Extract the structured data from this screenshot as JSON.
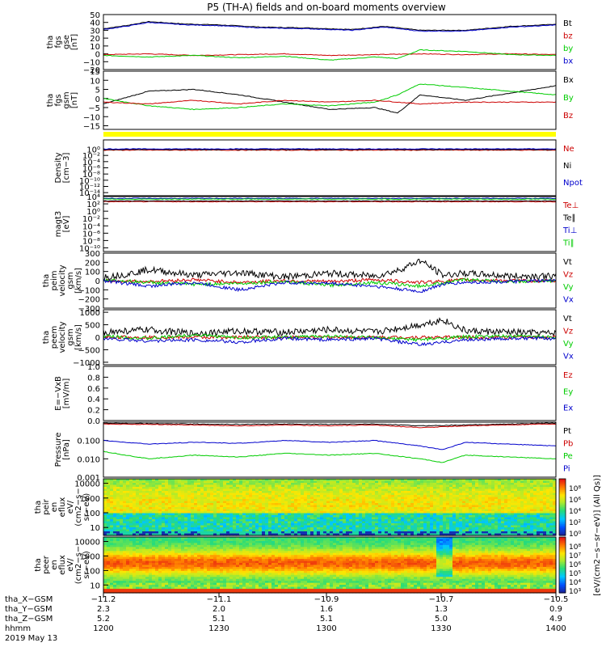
{
  "title": "P5 (TH-A) fields and on-board moments overview",
  "chart_data": [
    {
      "type": "line",
      "panel": "fgs_gse",
      "ylabel": [
        "tha",
        "fgs",
        "gse",
        "[nT]"
      ],
      "ylim": [
        -20,
        50
      ],
      "yticks": [
        "50",
        "40",
        "30",
        "20",
        "10",
        "0",
        "−10",
        "−20"
      ],
      "tickvals": [
        50,
        40,
        30,
        20,
        10,
        0,
        -10,
        -20
      ],
      "series": [
        {
          "name": "Bt",
          "color": "#000000",
          "x": [
            0,
            5,
            10,
            18,
            25,
            35,
            45,
            55,
            62,
            70,
            80,
            90,
            98,
            100
          ],
          "y": [
            32,
            36,
            41,
            38,
            37,
            34,
            33,
            31,
            35,
            30,
            30,
            35,
            37,
            38
          ]
        },
        {
          "name": "bz",
          "color": "#cc0000",
          "x": [
            0,
            10,
            20,
            30,
            40,
            50,
            60,
            70,
            80,
            90,
            100
          ],
          "y": [
            -1,
            0,
            -2,
            -1,
            0,
            -2,
            -1,
            0,
            -1,
            0,
            -1
          ]
        },
        {
          "name": "by",
          "color": "#00cc00",
          "x": [
            0,
            10,
            20,
            30,
            40,
            50,
            60,
            65,
            70,
            80,
            90,
            100
          ],
          "y": [
            -2,
            -4,
            -2,
            -5,
            -3,
            -8,
            -4,
            -6,
            5,
            3,
            -1,
            -2
          ]
        },
        {
          "name": "bx",
          "color": "#0000cc",
          "x": [
            0,
            5,
            10,
            18,
            25,
            35,
            45,
            55,
            62,
            70,
            80,
            90,
            98,
            100
          ],
          "y": [
            31,
            35,
            40,
            37,
            36,
            33,
            32,
            30,
            34,
            29,
            29,
            34,
            36,
            37
          ]
        }
      ]
    },
    {
      "type": "line",
      "panel": "fgs_gsm",
      "ylabel": [
        "tha",
        "fgs",
        "gsm",
        "[nT]"
      ],
      "ylim": [
        -17,
        15
      ],
      "yticks": [
        "15",
        "10",
        "5",
        "0",
        "−5",
        "−10",
        "−15"
      ],
      "tickvals": [
        15,
        10,
        5,
        0,
        -5,
        -10,
        -15
      ],
      "series": [
        {
          "name": "Bx",
          "color": "#000000",
          "x": [
            0,
            10,
            20,
            30,
            40,
            50,
            60,
            65,
            70,
            80,
            90,
            100
          ],
          "y": [
            -3,
            4,
            5,
            2,
            -2,
            -6,
            -5,
            -8,
            2,
            -1,
            3,
            7
          ]
        },
        {
          "name": "By",
          "color": "#00cc00",
          "x": [
            0,
            10,
            20,
            30,
            40,
            50,
            60,
            65,
            70,
            80,
            90,
            100
          ],
          "y": [
            0,
            -4,
            -6,
            -5,
            -3,
            -4,
            -2,
            2,
            8,
            6,
            4,
            2
          ]
        },
        {
          "name": "Bz",
          "color": "#cc0000",
          "x": [
            0,
            10,
            20,
            30,
            40,
            50,
            60,
            70,
            80,
            90,
            100
          ],
          "y": [
            -2,
            -3,
            -1,
            -3,
            -1,
            -2,
            -1,
            -3,
            -2,
            -2,
            -2
          ]
        }
      ]
    },
    {
      "type": "line",
      "panel": "density",
      "ylabel": [
        "Density",
        "[cm−3]"
      ],
      "ylim": [
        -15,
        3
      ],
      "yscale": "log",
      "yticks": [
        "10⁰",
        "10⁻²",
        "10⁻⁴",
        "10⁻⁶",
        "10⁻⁸",
        "10⁻¹⁰",
        "10⁻¹²",
        "10⁻¹⁴"
      ],
      "tickvals": [
        0,
        -2,
        -4,
        -6,
        -8,
        -10,
        -12,
        -14
      ],
      "series": [
        {
          "name": "Ne",
          "color": "#cc0000",
          "x": [
            0,
            100
          ],
          "y": [
            -0.3,
            -0.3
          ]
        },
        {
          "name": "Ni",
          "color": "#000000",
          "x": [
            0,
            100
          ],
          "y": [
            -0.1,
            -0.1
          ]
        },
        {
          "name": "Npot",
          "color": "#0000cc",
          "x": [
            0,
            100
          ],
          "y": [
            0.1,
            0.1
          ]
        }
      ]
    },
    {
      "type": "line",
      "panel": "magt3",
      "ylabel": [
        "magt3",
        "[eV]"
      ],
      "ylim": [
        -11,
        4
      ],
      "yscale": "log",
      "yticks": [
        "10⁴",
        "10²",
        "10⁰",
        "10⁻²",
        "10⁻⁴",
        "10⁻⁶",
        "10⁻⁸",
        "10⁻¹⁰"
      ],
      "tickvals": [
        4,
        2,
        0,
        -2,
        -4,
        -6,
        -8,
        -10
      ],
      "series": [
        {
          "name": "Te⊥",
          "color": "#cc0000",
          "x": [
            0,
            100
          ],
          "y": [
            2.6,
            2.6
          ]
        },
        {
          "name": "Te∥",
          "color": "#000000",
          "x": [
            0,
            100
          ],
          "y": [
            2.8,
            2.8
          ]
        },
        {
          "name": "Ti⊥",
          "color": "#0000cc",
          "x": [
            0,
            100
          ],
          "y": [
            3.5,
            3.5
          ]
        },
        {
          "name": "Ti∥",
          "color": "#00cc00",
          "x": [
            0,
            100
          ],
          "y": [
            3.3,
            3.3
          ]
        }
      ]
    },
    {
      "type": "line",
      "panel": "peim_velocity",
      "ylabel": [
        "tha",
        "peim",
        "velocity",
        "gsm",
        "[km/s]"
      ],
      "ylim": [
        -300,
        300
      ],
      "yticks": [
        "300",
        "200",
        "100",
        "0",
        "−100",
        "−200",
        "−300"
      ],
      "tickvals": [
        300,
        200,
        100,
        0,
        -100,
        -200,
        -300
      ],
      "series": [
        {
          "name": "Vt",
          "color": "#000000",
          "x": [
            0,
            5,
            10,
            20,
            30,
            40,
            50,
            60,
            65,
            70,
            75,
            80,
            90,
            100
          ],
          "y": [
            40,
            70,
            120,
            60,
            90,
            40,
            80,
            50,
            110,
            220,
            60,
            80,
            50,
            50
          ]
        },
        {
          "name": "Vz",
          "color": "#cc0000",
          "x": [
            0,
            10,
            20,
            30,
            40,
            50,
            60,
            70,
            80,
            90,
            100
          ],
          "y": [
            0,
            -10,
            10,
            -20,
            0,
            -10,
            10,
            -20,
            10,
            0,
            -5
          ]
        },
        {
          "name": "Vy",
          "color": "#00cc00",
          "x": [
            0,
            10,
            20,
            30,
            40,
            50,
            60,
            70,
            80,
            90,
            100
          ],
          "y": [
            10,
            -20,
            -40,
            -30,
            -10,
            -50,
            -20,
            -60,
            10,
            -10,
            0
          ]
        },
        {
          "name": "Vx",
          "color": "#0000cc",
          "x": [
            0,
            10,
            20,
            30,
            40,
            50,
            60,
            70,
            75,
            80,
            90,
            100
          ],
          "y": [
            0,
            -60,
            -20,
            -100,
            -20,
            -30,
            -60,
            -120,
            -40,
            -20,
            -10,
            0
          ]
        }
      ]
    },
    {
      "type": "line",
      "panel": "peem_velocity",
      "ylabel": [
        "tha",
        "peem",
        "velocity",
        "gsm",
        "[km/s]"
      ],
      "ylim": [
        -1100,
        1100
      ],
      "yticks": [
        "1000",
        "500",
        "0",
        "−500",
        "−1000"
      ],
      "tickvals": [
        1000,
        500,
        0,
        -500,
        -1000
      ],
      "series": [
        {
          "name": "Vt",
          "color": "#000000",
          "x": [
            0,
            10,
            20,
            30,
            40,
            50,
            60,
            70,
            75,
            80,
            90,
            100
          ],
          "y": [
            200,
            300,
            150,
            250,
            200,
            300,
            200,
            500,
            700,
            250,
            200,
            150
          ]
        },
        {
          "name": "Vz",
          "color": "#cc0000",
          "x": [
            0,
            100
          ],
          "y": [
            0,
            0
          ]
        },
        {
          "name": "Vy",
          "color": "#00cc00",
          "x": [
            0,
            10,
            20,
            30,
            40,
            50,
            60,
            70,
            80,
            90,
            100
          ],
          "y": [
            50,
            -50,
            100,
            -20,
            0,
            50,
            -30,
            -100,
            20,
            40,
            10
          ]
        },
        {
          "name": "Vx",
          "color": "#0000cc",
          "x": [
            0,
            10,
            20,
            30,
            40,
            50,
            60,
            70,
            80,
            90,
            100
          ],
          "y": [
            -50,
            -150,
            -100,
            -200,
            -50,
            -100,
            -50,
            -300,
            -100,
            -50,
            -50
          ]
        }
      ]
    },
    {
      "type": "line",
      "panel": "efield",
      "ylabel": [
        "E=−VxB",
        "[mV/m]"
      ],
      "ylim": [
        0,
        1
      ],
      "yticks": [
        "1.0",
        "0.8",
        "0.6",
        "0.4",
        "0.2",
        "0.0"
      ],
      "tickvals": [
        1.0,
        0.8,
        0.6,
        0.4,
        0.2,
        0.0
      ],
      "series": [
        {
          "name": "Ez",
          "color": "#cc0000",
          "x": [],
          "y": []
        },
        {
          "name": "Ey",
          "color": "#00cc00",
          "x": [],
          "y": []
        },
        {
          "name": "Ex",
          "color": "#0000cc",
          "x": [],
          "y": []
        }
      ]
    },
    {
      "type": "line",
      "panel": "pressure",
      "ylabel": [
        "Pressure",
        "[nPa]"
      ],
      "ylim": [
        -3,
        0
      ],
      "yscale": "log",
      "yticks": [
        "0.100",
        "0.010",
        "0.001"
      ],
      "tickvals": [
        -1,
        -2,
        -3
      ],
      "series": [
        {
          "name": "Pt",
          "color": "#000000",
          "x": [
            0,
            10,
            20,
            30,
            40,
            50,
            60,
            70,
            80,
            90,
            100
          ],
          "y": [
            -0.05,
            -0.08,
            -0.1,
            -0.12,
            -0.1,
            -0.12,
            -0.1,
            -0.2,
            -0.15,
            -0.1,
            -0.05
          ]
        },
        {
          "name": "Pb",
          "color": "#cc0000",
          "x": [
            0,
            10,
            20,
            30,
            40,
            50,
            60,
            70,
            80,
            90,
            100
          ],
          "y": [
            -0.1,
            -0.12,
            -0.15,
            -0.2,
            -0.15,
            -0.2,
            -0.15,
            -0.3,
            -0.2,
            -0.15,
            -0.1
          ]
        },
        {
          "name": "Pe",
          "color": "#00cc00",
          "x": [
            0,
            10,
            20,
            30,
            40,
            50,
            60,
            70,
            75,
            80,
            90,
            100
          ],
          "y": [
            -1.6,
            -2.0,
            -1.8,
            -1.9,
            -1.7,
            -1.8,
            -1.7,
            -2.0,
            -2.2,
            -1.8,
            -1.9,
            -2.0
          ]
        },
        {
          "name": "Pi",
          "color": "#0000cc",
          "x": [
            0,
            10,
            20,
            30,
            40,
            50,
            60,
            70,
            75,
            80,
            90,
            100
          ],
          "y": [
            -1.0,
            -1.2,
            -1.1,
            -1.15,
            -1.0,
            -1.1,
            -1.0,
            -1.3,
            -1.5,
            -1.1,
            -1.2,
            -1.3
          ]
        }
      ]
    },
    {
      "type": "heatmap",
      "panel": "peir_en_eflux",
      "ylabel": [
        "tha",
        "peir",
        "en",
        "eflux",
        "eV/",
        "(cm2−s−",
        "sr−eV)"
      ],
      "yticks": [
        "10000",
        "1000",
        "100",
        "10"
      ],
      "colorbar_ticks": [
        "10⁸",
        "10⁶",
        "10⁴",
        "10²",
        "10⁰"
      ]
    },
    {
      "type": "heatmap",
      "panel": "peer_en_eflux",
      "ylabel": [
        "tha",
        "peer",
        "en",
        "eflux",
        "eV/",
        "(cm2−s−",
        "sr−eV)"
      ],
      "yticks": [
        "10000",
        "1000",
        "100",
        "10"
      ],
      "colorbar_ticks": [
        "10⁸",
        "10⁷",
        "10⁶",
        "10⁵",
        "10⁴",
        "10³"
      ]
    }
  ],
  "colorbar_label": "[eV/(cm2−s−sr−eV)] (All Qs)]",
  "xaxis": {
    "rows": [
      {
        "label": "tha_X−GSM",
        "values": [
          "−11.2",
          "−11.1",
          "−10.9",
          "−10.7",
          "−10.5"
        ]
      },
      {
        "label": "tha_Y−GSM",
        "values": [
          "2.3",
          "2.0",
          "1.6",
          "1.3",
          "0.9"
        ]
      },
      {
        "label": "tha_Z−GSM",
        "values": [
          "5.2",
          "5.1",
          "5.1",
          "5.0",
          "4.9"
        ]
      },
      {
        "label": "hhmm",
        "values": [
          "1200",
          "1230",
          "1300",
          "1330",
          "1400"
        ]
      }
    ],
    "date": "2019 May 13"
  }
}
